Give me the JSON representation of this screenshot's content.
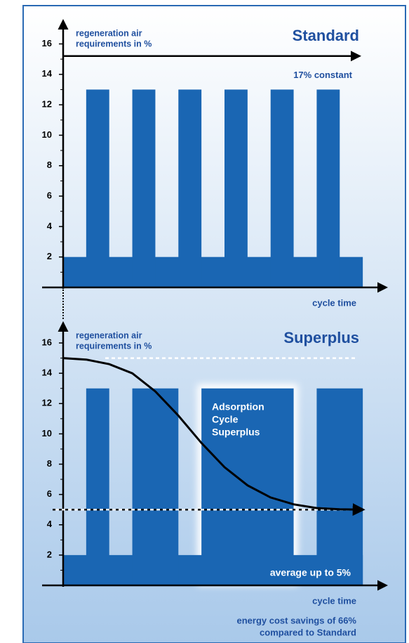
{
  "chart_data": [
    {
      "type": "pulse",
      "title": "Standard",
      "ylabel_lines": [
        "regeneration air",
        "requirements in %"
      ],
      "annotation": "17% constant",
      "xlabel": "cycle time",
      "color": "#1a66b3",
      "xlim": [
        0,
        14
      ],
      "ylim": [
        0,
        17.5
      ],
      "yticks": [
        2,
        4,
        6,
        8,
        10,
        12,
        14,
        16
      ],
      "minor_yticks": [
        1,
        3,
        5,
        7,
        9,
        11,
        13,
        15
      ],
      "base": {
        "value": 2,
        "x": [
          0,
          13
        ]
      },
      "pulses": [
        {
          "x": [
            1,
            2
          ],
          "value": 13
        },
        {
          "x": [
            3,
            4
          ],
          "value": 13
        },
        {
          "x": [
            5,
            6
          ],
          "value": 13
        },
        {
          "x": [
            7,
            8
          ],
          "value": 13
        },
        {
          "x": [
            9,
            10
          ],
          "value": 13
        },
        {
          "x": [
            11,
            12
          ],
          "value": 13
        }
      ],
      "level_arrow": 15.2
    },
    {
      "type": "pulse",
      "title": "Superplus",
      "ylabel_lines": [
        "regeneration air",
        "requirements in %"
      ],
      "annotation_lines": [
        "Adsorption",
        "Cycle",
        "Superplus"
      ],
      "average_label": "average up to 5%",
      "xlabel": "cycle time",
      "footnote_lines": [
        "energy cost savings of 66%",
        "compared to Standard"
      ],
      "color": "#1a66b3",
      "xlim": [
        0,
        14
      ],
      "ylim": [
        0,
        17.3
      ],
      "yticks": [
        2,
        4,
        6,
        8,
        10,
        12,
        14,
        16
      ],
      "minor_yticks": [
        1,
        3,
        5,
        7,
        9,
        11,
        13,
        15
      ],
      "base": {
        "value": 2,
        "x": [
          0,
          13
        ]
      },
      "pulses": [
        {
          "x": [
            1,
            2
          ],
          "value": 13
        },
        {
          "x": [
            3,
            5
          ],
          "value": 13
        },
        {
          "x": [
            6,
            10
          ],
          "value": 13,
          "highlight": true
        },
        {
          "x": [
            11,
            13
          ],
          "value": 13
        }
      ],
      "reference_lines": [
        {
          "value": 15,
          "color": "#ffffff"
        },
        {
          "value": 5,
          "color": "#000000"
        }
      ],
      "curve": {
        "x": [
          0,
          1,
          2,
          3,
          4,
          5,
          6,
          7,
          8,
          9,
          10,
          11,
          12,
          13
        ],
        "values": [
          15,
          14.9,
          14.6,
          14,
          12.8,
          11.2,
          9.4,
          7.8,
          6.6,
          5.8,
          5.35,
          5.1,
          5.02,
          5
        ]
      }
    }
  ]
}
